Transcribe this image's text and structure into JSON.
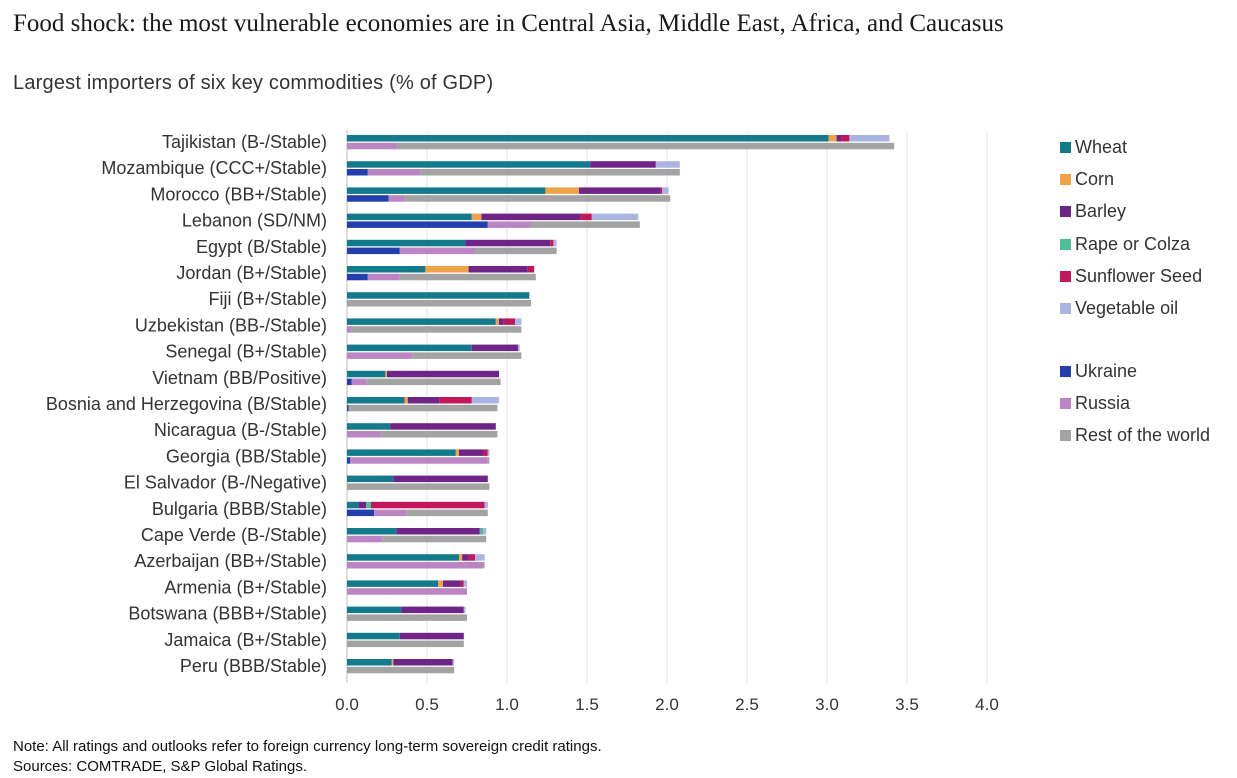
{
  "title": "Food shock: the most vulnerable economies are in Central Asia, Middle East, Africa, and Caucasus",
  "subtitle": "Largest importers of six key commodities (% of GDP)",
  "note": "Note: All ratings and outlooks refer to foreign currency long-term sovereign credit ratings.",
  "sources": "Sources: COMTRADE, S&P Global Ratings.",
  "colors": {
    "Wheat": "#137a8c",
    "Corn": "#f0a346",
    "Barley": "#6e2587",
    "Rape or Colza": "#4dbf96",
    "Sunflower Seed": "#c2185b",
    "Vegetable oil": "#a9b4e2",
    "Ukraine": "#233fae",
    "Russia": "#bb85c4",
    "Rest of the world": "#a3a3a3"
  },
  "legend": {
    "commodities": [
      "Wheat",
      "Corn",
      "Barley",
      "Rape or Colza",
      "Sunflower Seed",
      "Vegetable oil"
    ],
    "origins": [
      "Ukraine",
      "Russia",
      "Rest of the world"
    ]
  },
  "chart_data": {
    "type": "bar",
    "orientation": "horizontal",
    "stacked": true,
    "xlim": [
      0,
      4.0
    ],
    "xticks": [
      "0.0",
      "0.5",
      "1.0",
      "1.5",
      "2.0",
      "2.5",
      "3.0",
      "3.5",
      "4.0"
    ],
    "grid": true,
    "legend_position": "right",
    "categories": [
      "Tajikistan (B-/Stable)",
      "Mozambique (CCC+/Stable)",
      "Morocco (BB+/Stable)",
      "Lebanon (SD/NM)",
      "Egypt (B/Stable)",
      "Jordan (B+/Stable)",
      "Fiji (B+/Stable)",
      "Uzbekistan (BB-/Stable)",
      "Senegal (B+/Stable)",
      "Vietnam (BB/Positive)",
      "Bosnia and Herzegovina (B/Stable)",
      "Nicaragua (B-/Stable)",
      "Georgia (BB/Stable)",
      "El Salvador (B-/Negative)",
      "Bulgaria (BBB/Stable)",
      "Cape Verde (B-/Stable)",
      "Azerbaijan (BB+/Stable)",
      "Armenia (B+/Stable)",
      "Botswana (BBB+/Stable)",
      "Jamaica (B+/Stable)",
      "Peru (BBB/Stable)"
    ],
    "commodity_series": [
      {
        "name": "Wheat",
        "values": [
          3.01,
          1.52,
          1.24,
          0.78,
          0.74,
          0.49,
          1.14,
          0.93,
          0.78,
          0.24,
          0.36,
          0.27,
          0.68,
          0.29,
          0.07,
          0.31,
          0.7,
          0.57,
          0.34,
          0.33,
          0.28
        ]
      },
      {
        "name": "Corn",
        "values": [
          0.05,
          0.0,
          0.21,
          0.06,
          0.0,
          0.27,
          0.0,
          0.02,
          0.0,
          0.01,
          0.02,
          0.0,
          0.02,
          0.0,
          0.0,
          0.0,
          0.02,
          0.03,
          0.0,
          0.0,
          0.01
        ]
      },
      {
        "name": "Barley",
        "values": [
          0.03,
          0.41,
          0.51,
          0.62,
          0.53,
          0.37,
          0.0,
          0.03,
          0.29,
          0.7,
          0.2,
          0.66,
          0.15,
          0.59,
          0.05,
          0.52,
          0.04,
          0.11,
          0.39,
          0.4,
          0.37
        ]
      },
      {
        "name": "Rape or Colza",
        "values": [
          0.0,
          0.0,
          0.0,
          0.0,
          0.0,
          0.0,
          0.0,
          0.0,
          0.0,
          0.0,
          0.0,
          0.0,
          0.0,
          0.0,
          0.03,
          0.02,
          0.0,
          0.0,
          0.0,
          0.0,
          0.0
        ]
      },
      {
        "name": "Sunflower Seed",
        "values": [
          0.05,
          0.0,
          0.01,
          0.07,
          0.02,
          0.04,
          0.0,
          0.07,
          0.0,
          0.0,
          0.2,
          0.0,
          0.03,
          0.0,
          0.71,
          0.0,
          0.04,
          0.02,
          0.0,
          0.0,
          0.0
        ]
      },
      {
        "name": "Vegetable oil",
        "values": [
          0.25,
          0.15,
          0.04,
          0.29,
          0.02,
          0.0,
          0.0,
          0.04,
          0.01,
          0.0,
          0.17,
          0.0,
          0.01,
          0.0,
          0.02,
          0.02,
          0.06,
          0.02,
          0.01,
          0.0,
          0.01
        ]
      }
    ],
    "origin_series": [
      {
        "name": "Ukraine",
        "values": [
          0.0,
          0.13,
          0.26,
          0.88,
          0.33,
          0.13,
          0.0,
          0.0,
          0.0,
          0.03,
          0.01,
          0.0,
          0.02,
          0.0,
          0.17,
          0.0,
          0.0,
          0.0,
          0.0,
          0.0,
          0.0
        ]
      },
      {
        "name": "Russia",
        "values": [
          0.31,
          0.33,
          0.1,
          0.27,
          0.47,
          0.2,
          0.0,
          0.03,
          0.41,
          0.09,
          0.0,
          0.21,
          0.86,
          0.0,
          0.2,
          0.22,
          0.85,
          0.75,
          0.0,
          0.0,
          0.0
        ]
      },
      {
        "name": "Rest of the world",
        "values": [
          3.11,
          1.62,
          1.66,
          0.68,
          0.51,
          0.85,
          1.15,
          1.06,
          0.68,
          0.84,
          0.93,
          0.73,
          0.01,
          0.89,
          0.51,
          0.65,
          0.01,
          0.0,
          0.75,
          0.73,
          0.67
        ]
      }
    ]
  }
}
